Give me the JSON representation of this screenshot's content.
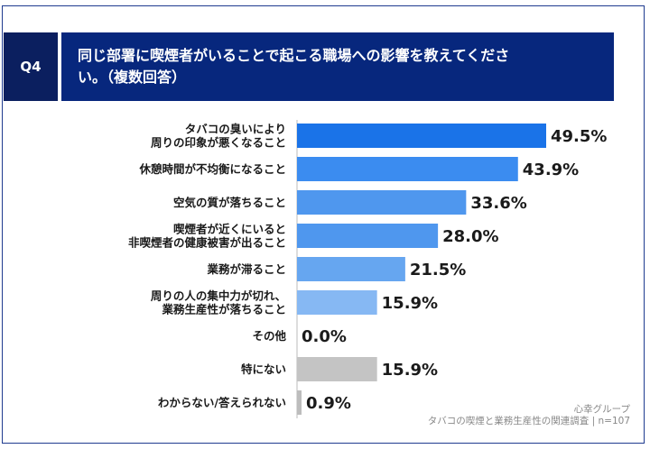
{
  "question": {
    "number": "Q4",
    "title_line1": "同じ部署に喫煙者がいることで起こる職場への影響を教えてくださ",
    "title_line2": "い。（複数回答）"
  },
  "source": {
    "brand": "心幸グループ",
    "survey": "タバコの喫煙と業務生産性の関連調査",
    "sample": "n=107"
  },
  "chart_data": {
    "type": "bar",
    "orientation": "horizontal",
    "unit": "%",
    "xlim": [
      0,
      60
    ],
    "categories": [
      [
        "タバコの臭いにより",
        "周りの印象が悪くなること"
      ],
      [
        "休憩時間が不均衡になること"
      ],
      [
        "空気の質が落ちること"
      ],
      [
        "喫煙者が近くにいると",
        "非喫煙者の健康被害が出ること"
      ],
      [
        "業務が滞ること"
      ],
      [
        "周りの人の集中力が切れ、",
        "業務生産性が落ちること"
      ],
      [
        "その他"
      ],
      [
        "特にない"
      ],
      [
        "わからない/答えられない"
      ]
    ],
    "values": [
      49.5,
      43.9,
      33.6,
      28.0,
      21.5,
      15.9,
      0.0,
      15.9,
      0.9
    ],
    "value_labels": [
      "49.5%",
      "43.9%",
      "33.6%",
      "28.0%",
      "21.5%",
      "15.9%",
      "0.0%",
      "15.9%",
      "0.9%"
    ],
    "colors": [
      "#1a73e8",
      "#3b8cf0",
      "#4f97ee",
      "#4f97ee",
      "#66a6f0",
      "#86b8f3",
      "#d8d8d8",
      "#c4c4c4",
      "#bdbdbd"
    ]
  }
}
